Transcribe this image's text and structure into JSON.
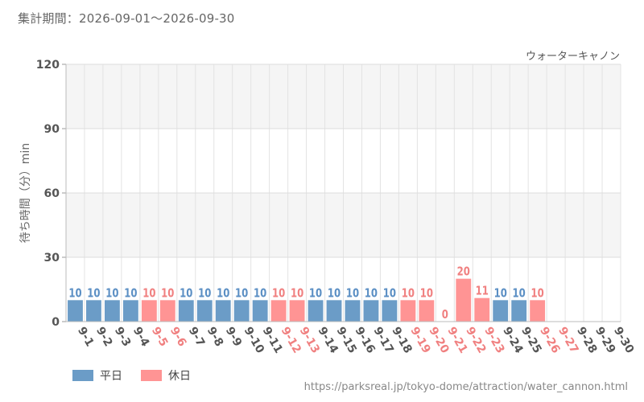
{
  "header": {
    "range": "集計期間：2026-09-01～2026-09-30"
  },
  "legend": {
    "weekday": "平日",
    "holiday": "休日"
  },
  "footer": {
    "source_url": "https://parksreal.jp/tokyo-dome/attraction/water_cannon.html"
  },
  "colors": {
    "weekday": "#6b9cc7",
    "holiday": "#ff9494",
    "holiday_label": "#f08080",
    "weekday_label": "#5b8fc4"
  },
  "chart_data": {
    "type": "bar",
    "title": "ウォーターキャノン",
    "ylabel": "待ち時間（分）min",
    "xlabel": "",
    "ylim": [
      0,
      120
    ],
    "yticks": [
      0,
      30,
      60,
      90,
      120
    ],
    "grid": true,
    "legend_position": "bottom-left",
    "categories": [
      "9-1",
      "9-2",
      "9-3",
      "9-4",
      "9-5",
      "9-6",
      "9-7",
      "9-8",
      "9-9",
      "9-10",
      "9-11",
      "9-12",
      "9-13",
      "9-14",
      "9-15",
      "9-16",
      "9-17",
      "9-18",
      "9-19",
      "9-20",
      "9-21",
      "9-22",
      "9-23",
      "9-24",
      "9-25",
      "9-26",
      "9-27",
      "9-28",
      "9-29",
      "9-30"
    ],
    "day_type": [
      "weekday",
      "weekday",
      "weekday",
      "weekday",
      "holiday",
      "holiday",
      "weekday",
      "weekday",
      "weekday",
      "weekday",
      "weekday",
      "holiday",
      "holiday",
      "weekday",
      "weekday",
      "weekday",
      "weekday",
      "weekday",
      "holiday",
      "holiday",
      "holiday",
      "holiday",
      "holiday",
      "weekday",
      "weekday",
      "holiday",
      "holiday",
      "weekday",
      "weekday",
      "weekday"
    ],
    "values": [
      10,
      10,
      10,
      10,
      10,
      10,
      10,
      10,
      10,
      10,
      10,
      10,
      10,
      10,
      10,
      10,
      10,
      10,
      10,
      10,
      0,
      20,
      11,
      10,
      10,
      10,
      null,
      null,
      null,
      null
    ]
  }
}
